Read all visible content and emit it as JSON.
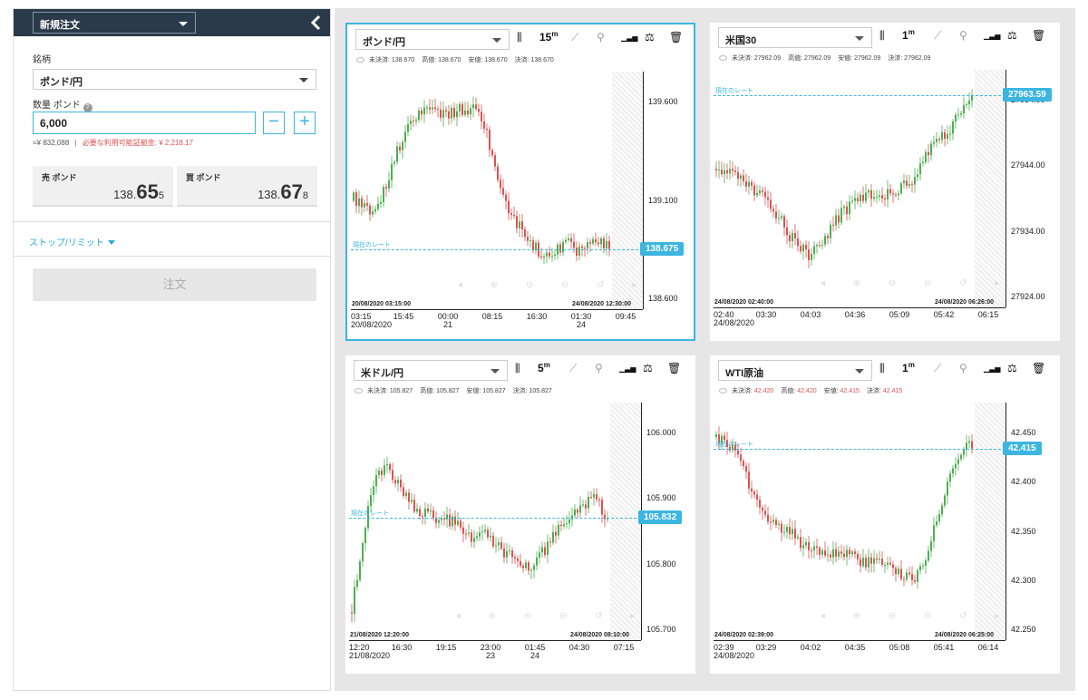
{
  "left": {
    "order_type": "新規注文",
    "symbol_label": "銘柄",
    "symbol_value": "ポンド/円",
    "qty_label": "数量 ポンド",
    "qty_value": "6,000",
    "estimate": "=¥ 832,088",
    "margin_note": "必要な利用可能証拠金: ¥ 2,218.17",
    "sell": {
      "title": "売 ポンド",
      "p1": "138.",
      "p2": "65",
      "p3": "5"
    },
    "buy": {
      "title": "買 ポンド",
      "p1": "138.",
      "p2": "67",
      "p3": "8"
    },
    "stop_limit": "ストップ/リミット",
    "order_button": "注文"
  },
  "icons": {
    "collapse": "chevron-left-icon",
    "help": "help-icon",
    "candles": "candlestick-icon",
    "draw": "draw-line-icon",
    "link": "link-icon",
    "indicators": "indicators-icon",
    "compare": "scale-icon",
    "trash": "trash-icon",
    "eye": "eye-icon"
  },
  "colors": {
    "accent": "#3cb5e0",
    "up": "#4caf50",
    "down": "#e05050",
    "header": "#2b3a4a"
  },
  "current_rate_label": "現在のレート",
  "panels": [
    {
      "symbol": "ポンド/円",
      "tf": "15",
      "tfsup": "m",
      "ohlc": [
        "未決済: 138.670",
        "高値: 138.670",
        "安値: 138.670",
        "決済: 138.670"
      ],
      "ohlc_red": false,
      "yticks": [
        "139.600",
        "139.100",
        "138.600"
      ],
      "current": "138.675",
      "start": "20/08/2020 03:15:00",
      "end": "24/08/2020 12:30:00",
      "xticks": [
        [
          "03:15",
          "20/08/2020"
        ],
        [
          "15:45",
          ""
        ],
        [
          "00:00",
          "21"
        ],
        [
          "08:15",
          ""
        ],
        [
          "16:30",
          ""
        ],
        [
          "01:30",
          "24"
        ],
        [
          "09:45",
          ""
        ]
      ]
    },
    {
      "symbol": "米国30",
      "tf": "1",
      "tfsup": "m",
      "ohlc": [
        "未決済: 27962.09",
        "高値: 27962.09",
        "安値: 27962.09",
        "決済: 27962.09"
      ],
      "ohlc_red": false,
      "yticks": [
        "27954.00",
        "27944.00",
        "27934.00",
        "27924.00"
      ],
      "current": "27963.59",
      "start": "24/08/2020 02:40:00",
      "end": "24/08/2020 06:26:00",
      "xticks": [
        [
          "02:40",
          "24/08/2020"
        ],
        [
          "03:30",
          ""
        ],
        [
          "04:03",
          ""
        ],
        [
          "04:36",
          ""
        ],
        [
          "05:09",
          ""
        ],
        [
          "05:42",
          ""
        ],
        [
          "06:15",
          ""
        ]
      ]
    },
    {
      "symbol": "米ドル/円",
      "tf": "5",
      "tfsup": "m",
      "ohlc": [
        "未決済: 105.827",
        "高値: 105.827",
        "安値: 105.827",
        "決済: 105.827"
      ],
      "ohlc_red": false,
      "yticks": [
        "106.000",
        "105.900",
        "105.800",
        "105.700"
      ],
      "current": "105.832",
      "start": "21/08/2020 12:20:00",
      "end": "24/08/2020 08:10:00",
      "xticks": [
        [
          "12:20",
          "21/08/2020"
        ],
        [
          "16:30",
          ""
        ],
        [
          "19:15",
          ""
        ],
        [
          "23:00",
          "23"
        ],
        [
          "01:45",
          "24"
        ],
        [
          "04:30",
          ""
        ],
        [
          "07:15",
          ""
        ]
      ]
    },
    {
      "symbol": "WTI原油",
      "tf": "1",
      "tfsup": "m",
      "ohlc": [
        "未決済: 42.420",
        "高値: 42.420",
        "安値: 42.415",
        "決済: 42.415"
      ],
      "ohlc_red": true,
      "yticks": [
        "42.450",
        "42.400",
        "42.350",
        "42.300",
        "42.250"
      ],
      "current": "42.415",
      "start": "24/08/2020 02:39:00",
      "end": "24/08/2020 06:25:00",
      "xticks": [
        [
          "02:39",
          "24/08/2020"
        ],
        [
          "03:29",
          ""
        ],
        [
          "04:02",
          ""
        ],
        [
          "04:35",
          ""
        ],
        [
          "05:08",
          ""
        ],
        [
          "05:41",
          ""
        ],
        [
          "06:14",
          ""
        ]
      ]
    }
  ]
}
